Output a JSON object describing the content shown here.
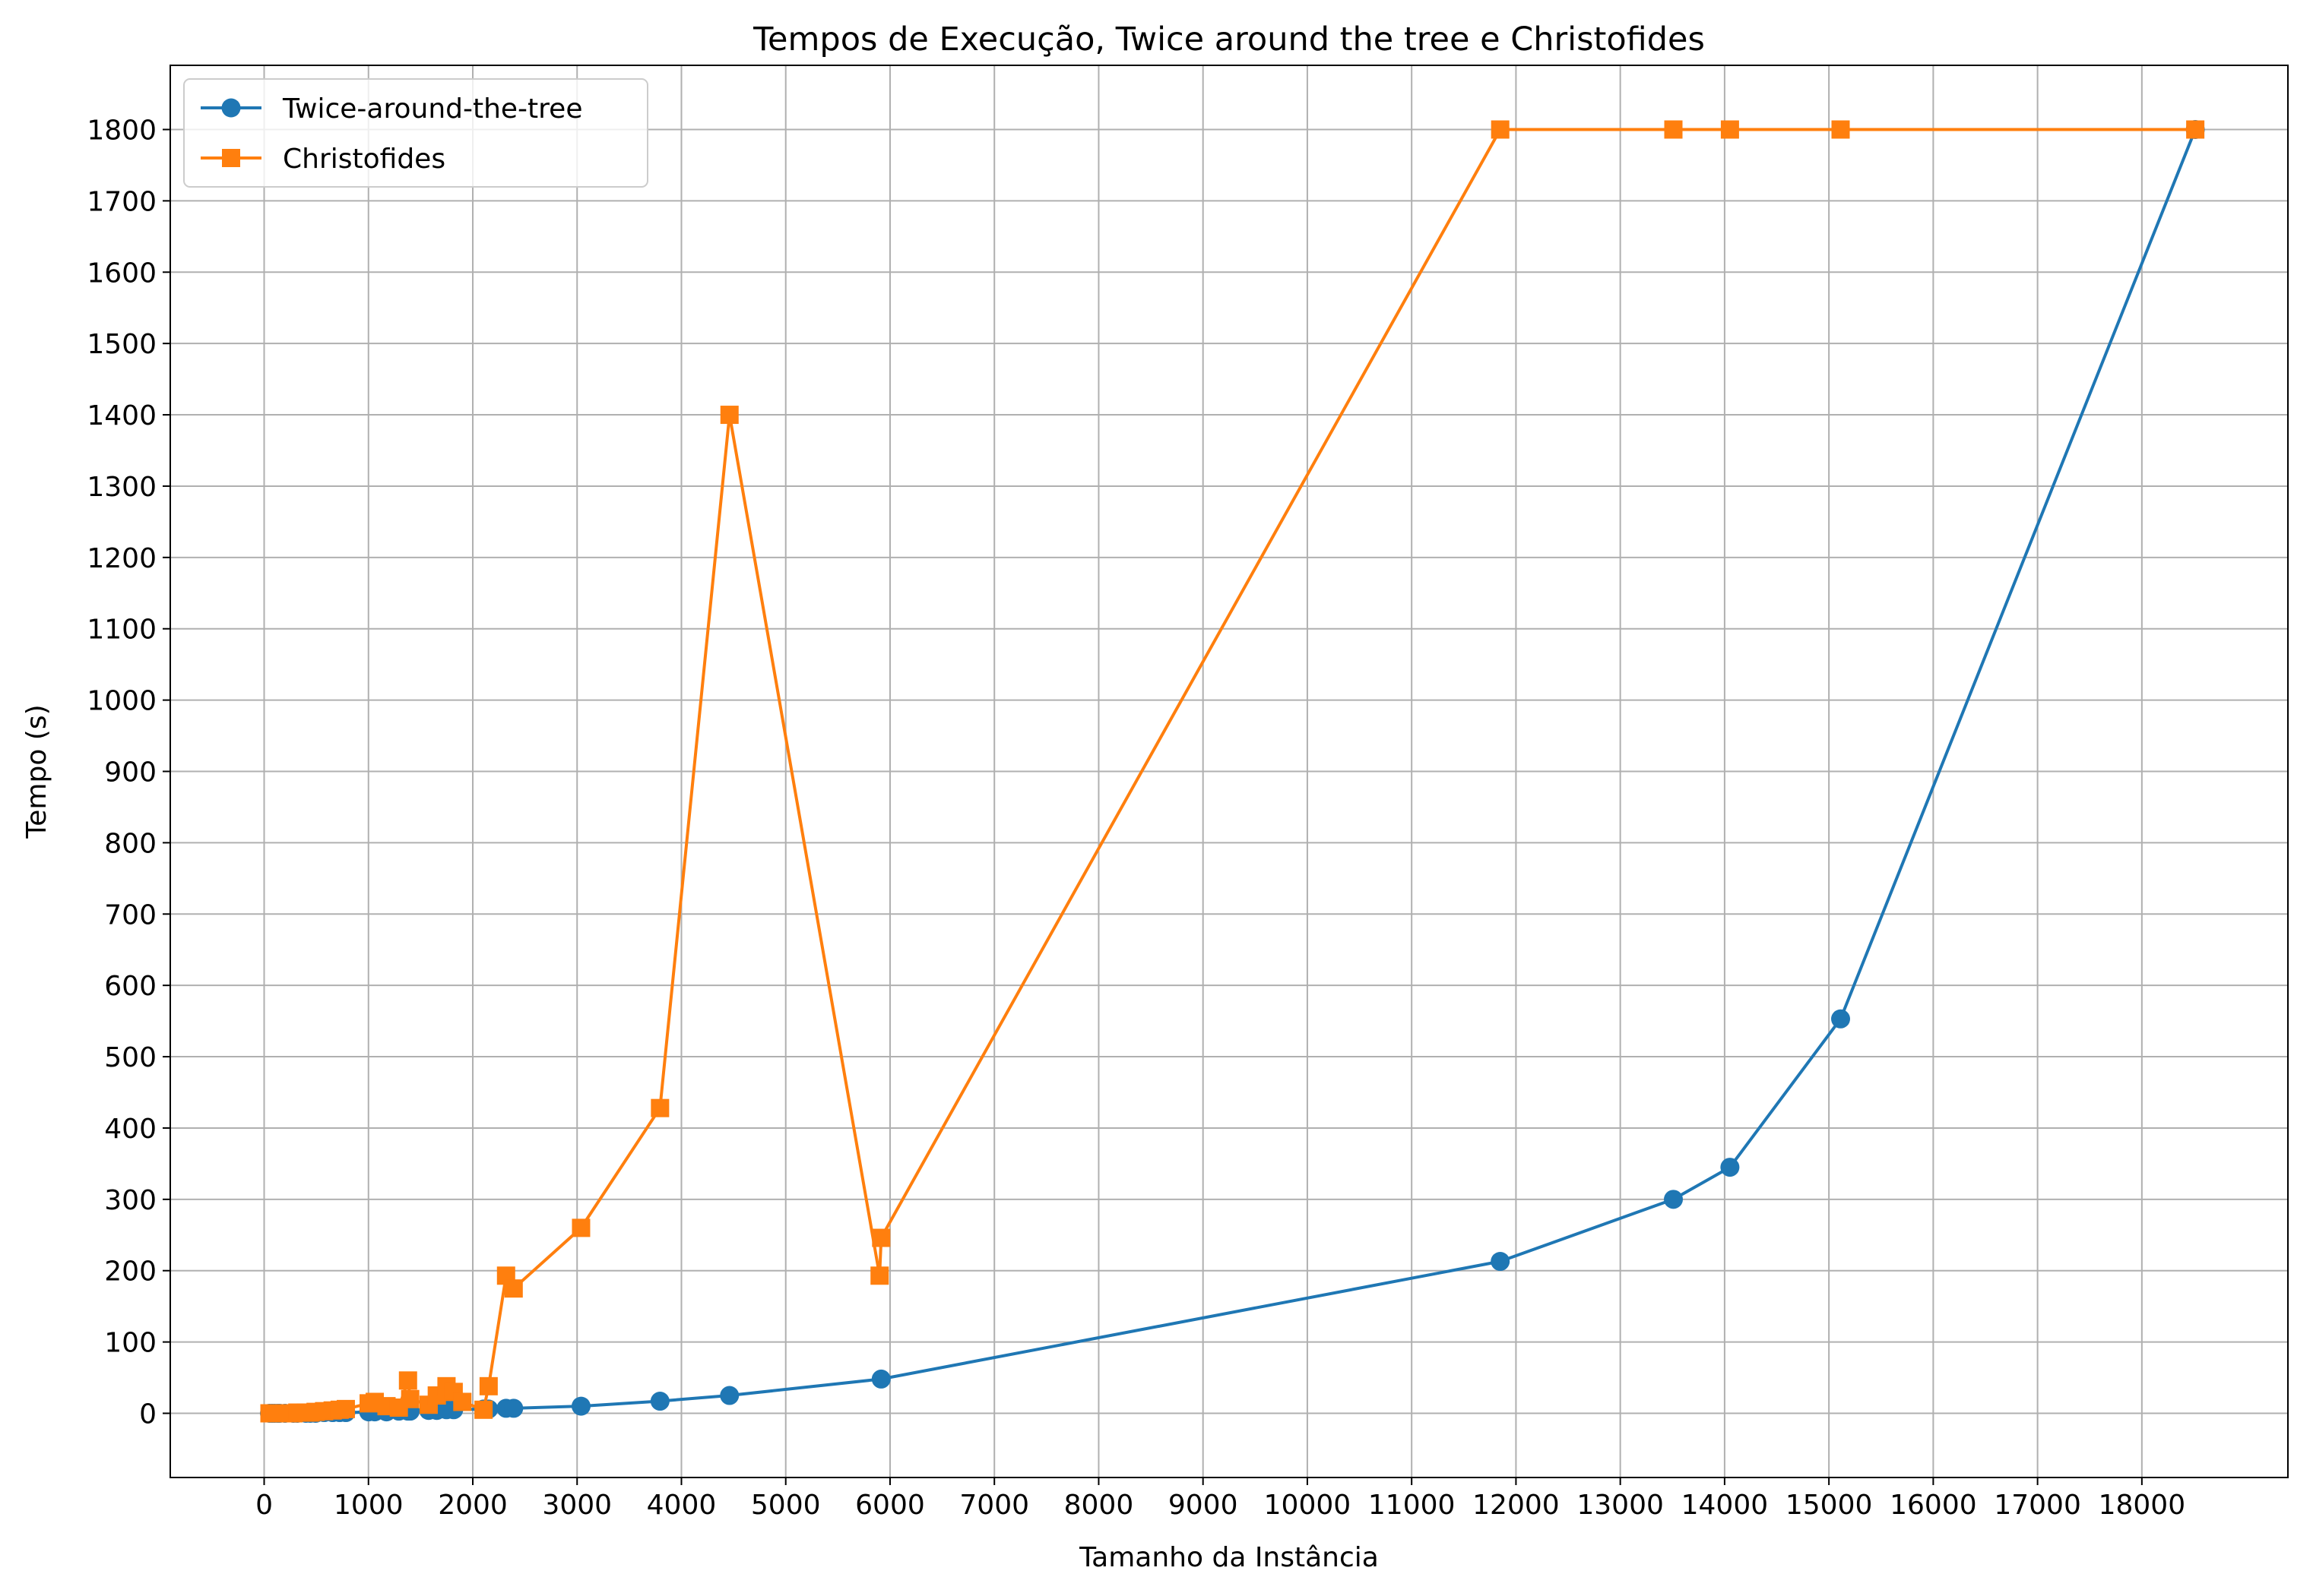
{
  "chart_data": {
    "type": "line",
    "title": "Tempos de Execução, Twice around the tree e Christofides",
    "xlabel": "Tamanho da Instância",
    "ylabel": "Tempo (s)",
    "xlim": [
      -900,
      19400
    ],
    "ylim": [
      -90,
      1890
    ],
    "x_ticks": [
      0,
      1000,
      2000,
      3000,
      4000,
      5000,
      6000,
      7000,
      8000,
      9000,
      10000,
      11000,
      12000,
      13000,
      14000,
      15000,
      16000,
      17000,
      18000
    ],
    "y_ticks": [
      0,
      100,
      200,
      300,
      400,
      500,
      600,
      700,
      800,
      900,
      1000,
      1100,
      1200,
      1300,
      1400,
      1500,
      1600,
      1700,
      1800
    ],
    "grid": true,
    "legend_position": "top-left",
    "series": [
      {
        "name": "Twice-around-the-tree",
        "color": "#1f77b4",
        "marker": "circle",
        "x": [
          51,
          76,
          100,
          130,
          150,
          200,
          280,
          318,
          400,
          442,
          493,
          575,
          657,
          724,
          783,
          1002,
          1060,
          1173,
          1291,
          1379,
          1400,
          1577,
          1655,
          1748,
          1817,
          2103,
          2152,
          2319,
          2392,
          3038,
          3795,
          4461,
          5915,
          11849,
          13509,
          14051,
          15112,
          18512
        ],
        "y": [
          0,
          0,
          0,
          0,
          0,
          0,
          0,
          0,
          0,
          0,
          0,
          1,
          1,
          1,
          1,
          2,
          2,
          2,
          3,
          3,
          3,
          4,
          4,
          5,
          5,
          6,
          6,
          7,
          7,
          10,
          17,
          25,
          48,
          213,
          300,
          345,
          553,
          1800
        ]
      },
      {
        "name": "Christofides",
        "color": "#ff7f0e",
        "marker": "square",
        "x": [
          51,
          76,
          100,
          130,
          150,
          200,
          280,
          318,
          400,
          442,
          493,
          575,
          657,
          724,
          783,
          1002,
          1060,
          1173,
          1291,
          1379,
          1400,
          1577,
          1655,
          1748,
          1817,
          1900,
          2103,
          2152,
          2319,
          2392,
          3038,
          3795,
          4461,
          5900,
          5915,
          11849,
          13509,
          14051,
          15112,
          18512
        ],
        "y": [
          0,
          0,
          0,
          0,
          0,
          0,
          0,
          1,
          1,
          1,
          2,
          3,
          4,
          5,
          6,
          14,
          16,
          10,
          8,
          46,
          20,
          12,
          25,
          38,
          30,
          16,
          5,
          38,
          193,
          175,
          260,
          428,
          1400,
          193,
          246,
          1800,
          1800,
          1800,
          1800,
          1800
        ]
      }
    ]
  }
}
